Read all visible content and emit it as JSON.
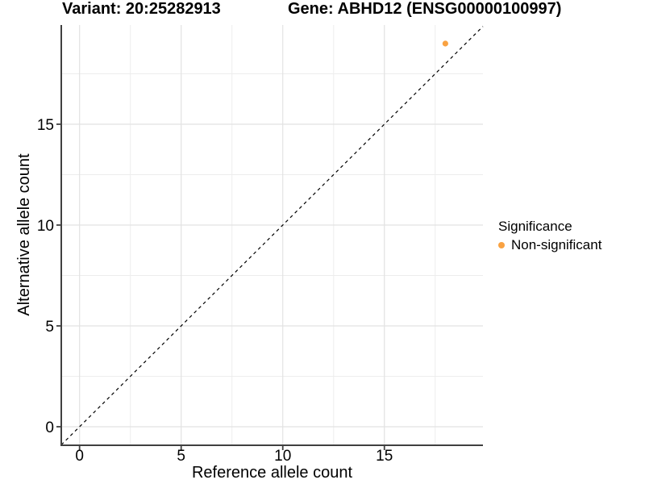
{
  "titles": {
    "variant": "Variant: 20:25282913",
    "gene": "Gene: ABHD12 (ENSG00000100997)"
  },
  "chart_data": {
    "type": "scatter",
    "title_left": "Variant: 20:25282913",
    "title_right": "Gene: ABHD12 (ENSG00000100997)",
    "xlabel": "Reference allele count",
    "ylabel": "Alternative allele count",
    "xlim": [
      -0.9,
      19.85
    ],
    "ylim": [
      -0.92,
      19.92
    ],
    "x_major_ticks": [
      0,
      5,
      10,
      15
    ],
    "y_major_ticks": [
      0,
      5,
      10,
      15
    ],
    "x_minor_gridlines": [
      2.5,
      7.5,
      12.5,
      17.5
    ],
    "y_minor_gridlines": [
      2.5,
      7.5,
      12.5,
      17.5
    ],
    "grid": true,
    "identity_line": {
      "style": "dashed",
      "slope": 1,
      "intercept": 0,
      "color": "#000000"
    },
    "points": [
      {
        "x": 18,
        "y": 19,
        "series": "Non-significant",
        "color": "#F9A242",
        "radius": 3.6
      }
    ],
    "legend": {
      "title": "Significance",
      "position": "right",
      "items": [
        {
          "label": "Non-significant",
          "color": "#F9A242"
        }
      ]
    }
  },
  "colors": {
    "accent_orange": "#F9A242",
    "axis_line": "#404040",
    "grid_major": "#E2E2E2",
    "grid_minor": "#EDEDED",
    "text": "#000000",
    "background": "#FFFFFF"
  }
}
